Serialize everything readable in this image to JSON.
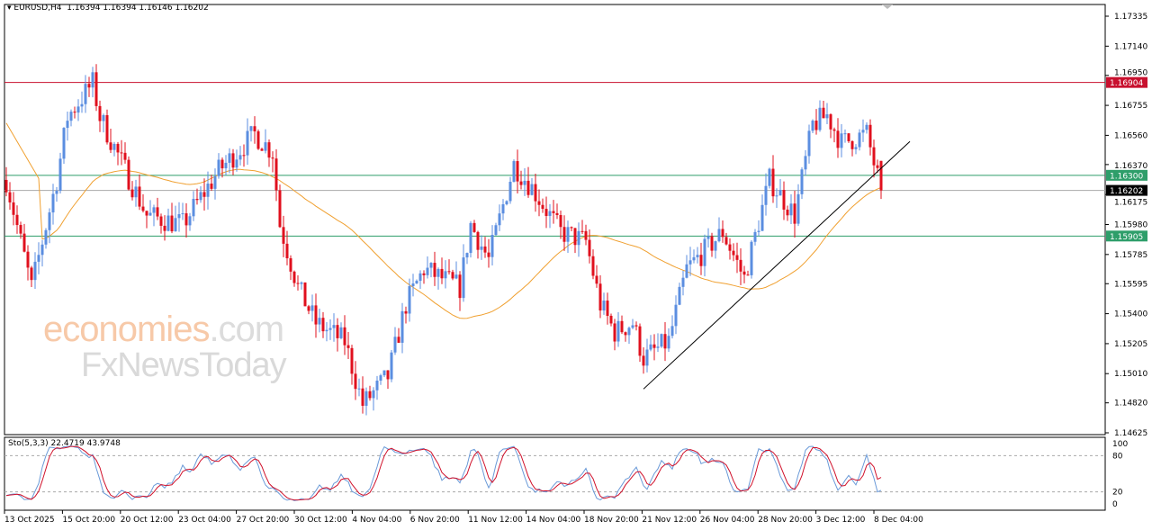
{
  "header": {
    "symbol": "EURUSD,H4",
    "ohlc": "1.16394 1.16394 1.16146 1.16202"
  },
  "indicator": {
    "label": "Sto(5,3,3) 22.4719 43.9748",
    "levels": [
      "100",
      "80",
      "20",
      "0"
    ]
  },
  "watermark": {
    "brand1": "economies",
    "brand1_suffix": ".com",
    "brand2": "FxNewsToday"
  },
  "colors": {
    "bull": "#5b8ee0",
    "bear": "#e0101e",
    "ma": "#f0a030",
    "resistance": "#c8102e",
    "support": "#2e9e6a",
    "current": "#000000",
    "sto_main": "#6a9ad8",
    "sto_signal": "#d0102a"
  },
  "chart_data": {
    "type": "candlestick",
    "symbol": "EURUSD",
    "timeframe": "H4",
    "ylim": [
      1.14625,
      1.17335
    ],
    "y_ticks": [
      "1.17335",
      "1.17140",
      "1.16950",
      "1.16755",
      "1.16560",
      "1.16370",
      "1.16175",
      "1.15980",
      "1.15785",
      "1.15595",
      "1.15400",
      "1.15205",
      "1.15010",
      "1.14820",
      "1.14625"
    ],
    "x_ticks": [
      "13 Oct 2025",
      "15 Oct 20:00",
      "20 Oct 12:00",
      "23 Oct 04:00",
      "27 Oct 20:00",
      "30 Oct 12:00",
      "4 Nov 04:00",
      "6 Nov 20:00",
      "11 Nov 12:00",
      "14 Nov 04:00",
      "18 Nov 20:00",
      "21 Nov 12:00",
      "26 Nov 04:00",
      "28 Nov 20:00",
      "3 Dec 12:00",
      "8 Dec 04:00"
    ],
    "approx_close_path": [
      [
        0,
        1.1627
      ],
      [
        7,
        1.1557
      ],
      [
        14,
        1.1627
      ],
      [
        17,
        1.1668
      ],
      [
        24,
        1.169
      ],
      [
        26,
        1.1668
      ],
      [
        39,
        1.1604
      ],
      [
        49,
        1.1598
      ],
      [
        59,
        1.1633
      ],
      [
        69,
        1.1657
      ],
      [
        74,
        1.1645
      ],
      [
        76,
        1.1598
      ],
      [
        81,
        1.1557
      ],
      [
        86,
        1.1534
      ],
      [
        94,
        1.1522
      ],
      [
        99,
        1.1481
      ],
      [
        106,
        1.1499
      ],
      [
        111,
        1.1546
      ],
      [
        116,
        1.1569
      ],
      [
        126,
        1.1557
      ],
      [
        129,
        1.1598
      ],
      [
        134,
        1.1575
      ],
      [
        141,
        1.1637
      ],
      [
        146,
        1.1622
      ],
      [
        154,
        1.1593
      ],
      [
        161,
        1.1587
      ],
      [
        165,
        1.1546
      ],
      [
        169,
        1.1528
      ],
      [
        174,
        1.1534
      ],
      [
        177,
        1.1511
      ],
      [
        184,
        1.1522
      ],
      [
        189,
        1.1569
      ],
      [
        199,
        1.1593
      ],
      [
        205,
        1.1563
      ],
      [
        212,
        1.1627
      ],
      [
        219,
        1.1604
      ],
      [
        224,
        1.1663
      ],
      [
        228,
        1.1669
      ],
      [
        232,
        1.1651
      ],
      [
        239,
        1.1657
      ],
      [
        241,
        1.1638
      ],
      [
        243,
        1.16202
      ]
    ],
    "horizontal_levels": [
      {
        "label": "1.16904",
        "value": 1.16904,
        "kind": "resistance"
      },
      {
        "label": "1.16300",
        "value": 1.163,
        "kind": "support"
      },
      {
        "label": "1.15905",
        "value": 1.15905,
        "kind": "support"
      },
      {
        "label": "1.16202",
        "value": 1.16202,
        "kind": "current"
      }
    ],
    "trendline": {
      "from": [
        177,
        1.1491
      ],
      "to": [
        251,
        1.1652
      ]
    },
    "moving_average": {
      "type": "SMA",
      "period": 50
    },
    "stochastic": {
      "k": 5,
      "d": 3,
      "slowing": 3,
      "main": 22.4719,
      "signal": 43.9748,
      "ylim": [
        0,
        100
      ],
      "levels": [
        20,
        80
      ]
    }
  }
}
